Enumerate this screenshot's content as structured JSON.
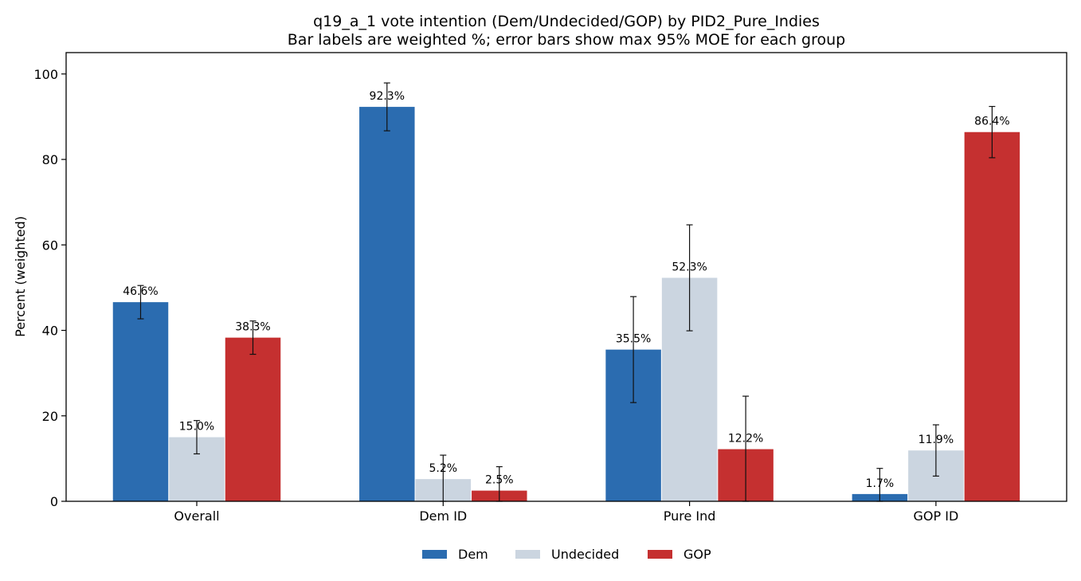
{
  "chart_data": {
    "type": "bar",
    "title": "q19_a_1 vote intention (Dem/Undecided/GOP) by PID2_Pure_Indies",
    "subtitle": "Bar labels are weighted %; error bars show max 95% MOE for each group",
    "xlabel": "",
    "ylabel": "Percent (weighted)",
    "ylim": [
      0,
      105
    ],
    "yticks": [
      0,
      20,
      40,
      60,
      80,
      100
    ],
    "categories": [
      "Overall",
      "Dem ID",
      "Pure Ind",
      "GOP ID"
    ],
    "series": [
      {
        "name": "Dem",
        "color": "#2b6cb0",
        "values": [
          46.6,
          92.3,
          35.5,
          1.7
        ],
        "labels": [
          "46.6%",
          "92.3%",
          "35.5%",
          "1.7%"
        ],
        "moe": [
          3.9,
          5.6,
          12.4,
          6.0
        ]
      },
      {
        "name": "Undecided",
        "color": "#cbd5e0",
        "values": [
          15.0,
          5.2,
          52.3,
          11.9
        ],
        "labels": [
          "15.0%",
          "5.2%",
          "52.3%",
          "11.9%"
        ],
        "moe": [
          3.9,
          5.6,
          12.4,
          6.0
        ]
      },
      {
        "name": "GOP",
        "color": "#c53030",
        "values": [
          38.3,
          2.5,
          12.2,
          86.4
        ],
        "labels": [
          "38.3%",
          "2.5%",
          "12.2%",
          "86.4%"
        ],
        "moe": [
          3.9,
          5.6,
          12.4,
          6.0
        ]
      }
    ],
    "legend_position": "bottom-center",
    "grid": false
  }
}
